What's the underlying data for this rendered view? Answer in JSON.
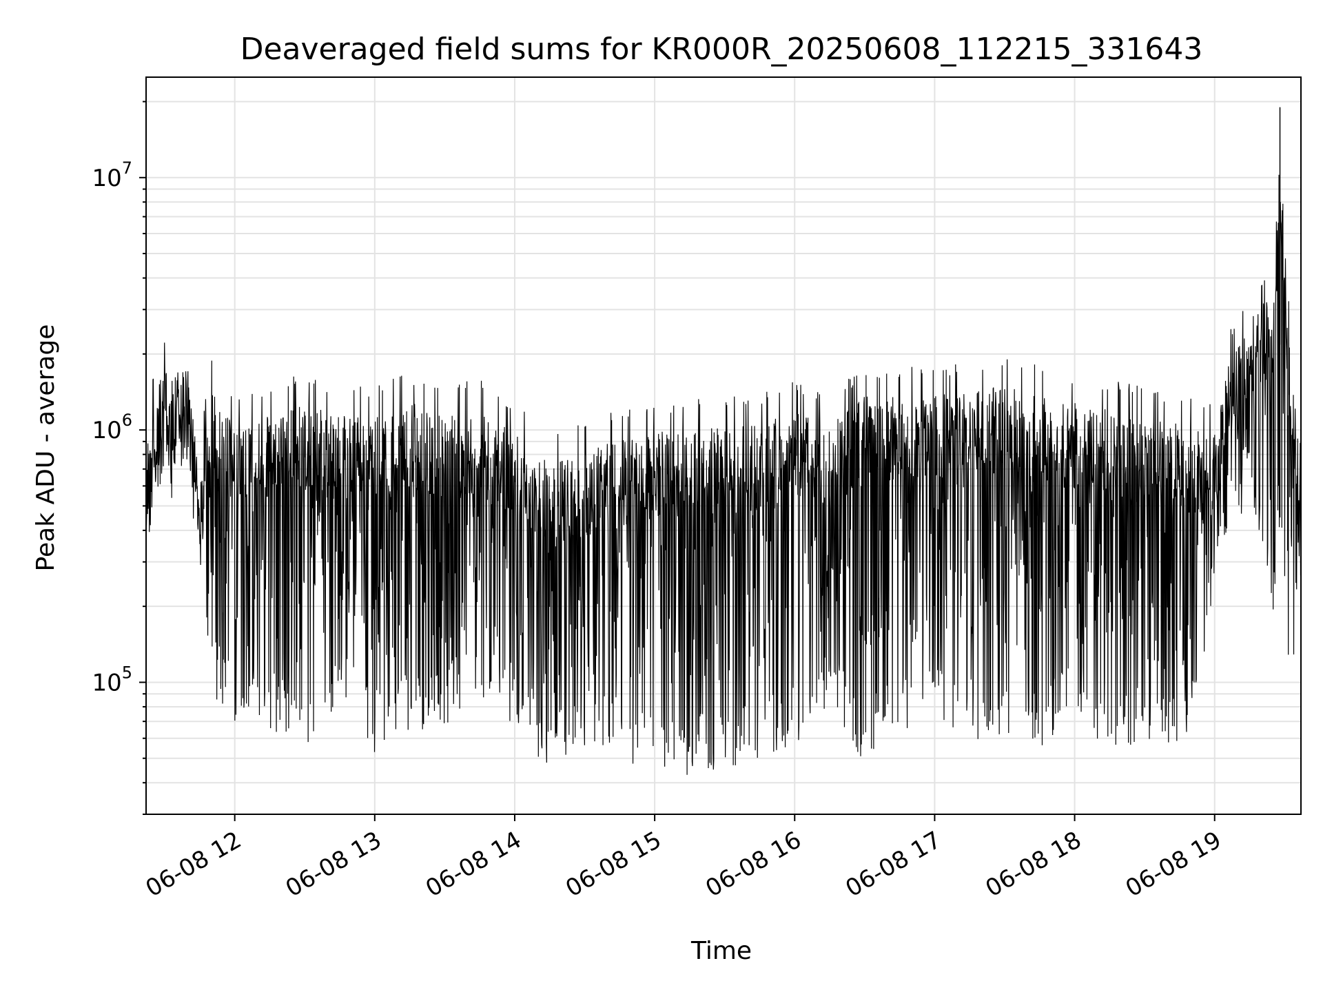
{
  "chart_data": {
    "type": "line",
    "title": "Deaveraged field sums for KR000R_20250608_112215_331643",
    "xlabel": "Time",
    "ylabel": "Peak ADU - average",
    "yscale": "log",
    "ylim": [
      30000,
      25000000
    ],
    "xlim": [
      "06-08 11:22",
      "06-08 19:37"
    ],
    "grid": true,
    "x_ticks": [
      {
        "time": "06-08 12:00",
        "label": "06-08 12"
      },
      {
        "time": "06-08 13:00",
        "label": "06-08 13"
      },
      {
        "time": "06-08 14:00",
        "label": "06-08 14"
      },
      {
        "time": "06-08 15:00",
        "label": "06-08 15"
      },
      {
        "time": "06-08 16:00",
        "label": "06-08 16"
      },
      {
        "time": "06-08 17:00",
        "label": "06-08 17"
      },
      {
        "time": "06-08 18:00",
        "label": "06-08 18"
      },
      {
        "time": "06-08 19:00",
        "label": "06-08 19"
      }
    ],
    "y_ticks": [
      {
        "value": 100000,
        "base": "10",
        "exp": "5"
      },
      {
        "value": 1000000,
        "base": "10",
        "exp": "6"
      },
      {
        "value": 10000000,
        "base": "10",
        "exp": "7"
      }
    ],
    "series": [
      {
        "color": "#000000",
        "envelope": [
          {
            "time": "06-08 11:22",
            "low": 280000,
            "high": 1300000
          },
          {
            "time": "06-08 11:30",
            "low": 500000,
            "high": 2400000
          },
          {
            "time": "06-08 11:40",
            "low": 600000,
            "high": 2300000
          },
          {
            "time": "06-08 11:45",
            "low": 280000,
            "high": 900000
          },
          {
            "time": "06-08 11:50",
            "low": 90000,
            "high": 2100000
          },
          {
            "time": "06-08 12:00",
            "low": 70000,
            "high": 1300000
          },
          {
            "time": "06-08 12:15",
            "low": 65000,
            "high": 1500000
          },
          {
            "time": "06-08 12:30",
            "low": 50000,
            "high": 1700000
          },
          {
            "time": "06-08 12:45",
            "low": 85000,
            "high": 1500000
          },
          {
            "time": "06-08 13:00",
            "low": 52000,
            "high": 1500000
          },
          {
            "time": "06-08 13:15",
            "low": 65000,
            "high": 1700000
          },
          {
            "time": "06-08 13:30",
            "low": 65000,
            "high": 1600000
          },
          {
            "time": "06-08 13:45",
            "low": 90000,
            "high": 1600000
          },
          {
            "time": "06-08 14:00",
            "low": 65000,
            "high": 1300000
          },
          {
            "time": "06-08 14:15",
            "low": 43000,
            "high": 1000000
          },
          {
            "time": "06-08 14:30",
            "low": 55000,
            "high": 1100000
          },
          {
            "time": "06-08 14:45",
            "low": 50000,
            "high": 1200000
          },
          {
            "time": "06-08 15:00",
            "low": 41000,
            "high": 1300000
          },
          {
            "time": "06-08 15:15",
            "low": 43000,
            "high": 1300000
          },
          {
            "time": "06-08 15:30",
            "low": 45000,
            "high": 1400000
          },
          {
            "time": "06-08 15:45",
            "low": 50000,
            "high": 1400000
          },
          {
            "time": "06-08 16:00",
            "low": 55000,
            "high": 1600000
          },
          {
            "time": "06-08 16:15",
            "low": 80000,
            "high": 1400000
          },
          {
            "time": "06-08 16:30",
            "low": 47000,
            "high": 1800000
          },
          {
            "time": "06-08 16:45",
            "low": 60000,
            "high": 1800000
          },
          {
            "time": "06-08 17:00",
            "low": 70000,
            "high": 1800000
          },
          {
            "time": "06-08 17:15",
            "low": 60000,
            "high": 1900000
          },
          {
            "time": "06-08 17:30",
            "low": 55000,
            "high": 2000000
          },
          {
            "time": "06-08 17:45",
            "low": 55000,
            "high": 1800000
          },
          {
            "time": "06-08 18:00",
            "low": 75000,
            "high": 1700000
          },
          {
            "time": "06-08 18:15",
            "low": 42000,
            "high": 1600000
          },
          {
            "time": "06-08 18:30",
            "low": 60000,
            "high": 1500000
          },
          {
            "time": "06-08 18:45",
            "low": 48000,
            "high": 1400000
          },
          {
            "time": "06-08 19:00",
            "low": 190000,
            "high": 1300000
          },
          {
            "time": "06-08 19:05",
            "low": 400000,
            "high": 2300000
          },
          {
            "time": "06-08 19:15",
            "low": 500000,
            "high": 3800000
          },
          {
            "time": "06-08 19:25",
            "low": 160000,
            "high": 4500000
          },
          {
            "time": "06-08 19:28",
            "low": 450000,
            "high": 19000000
          },
          {
            "time": "06-08 19:32",
            "low": 110000,
            "high": 3000000
          },
          {
            "time": "06-08 19:37",
            "low": 100000,
            "high": 1200000
          }
        ]
      }
    ]
  }
}
